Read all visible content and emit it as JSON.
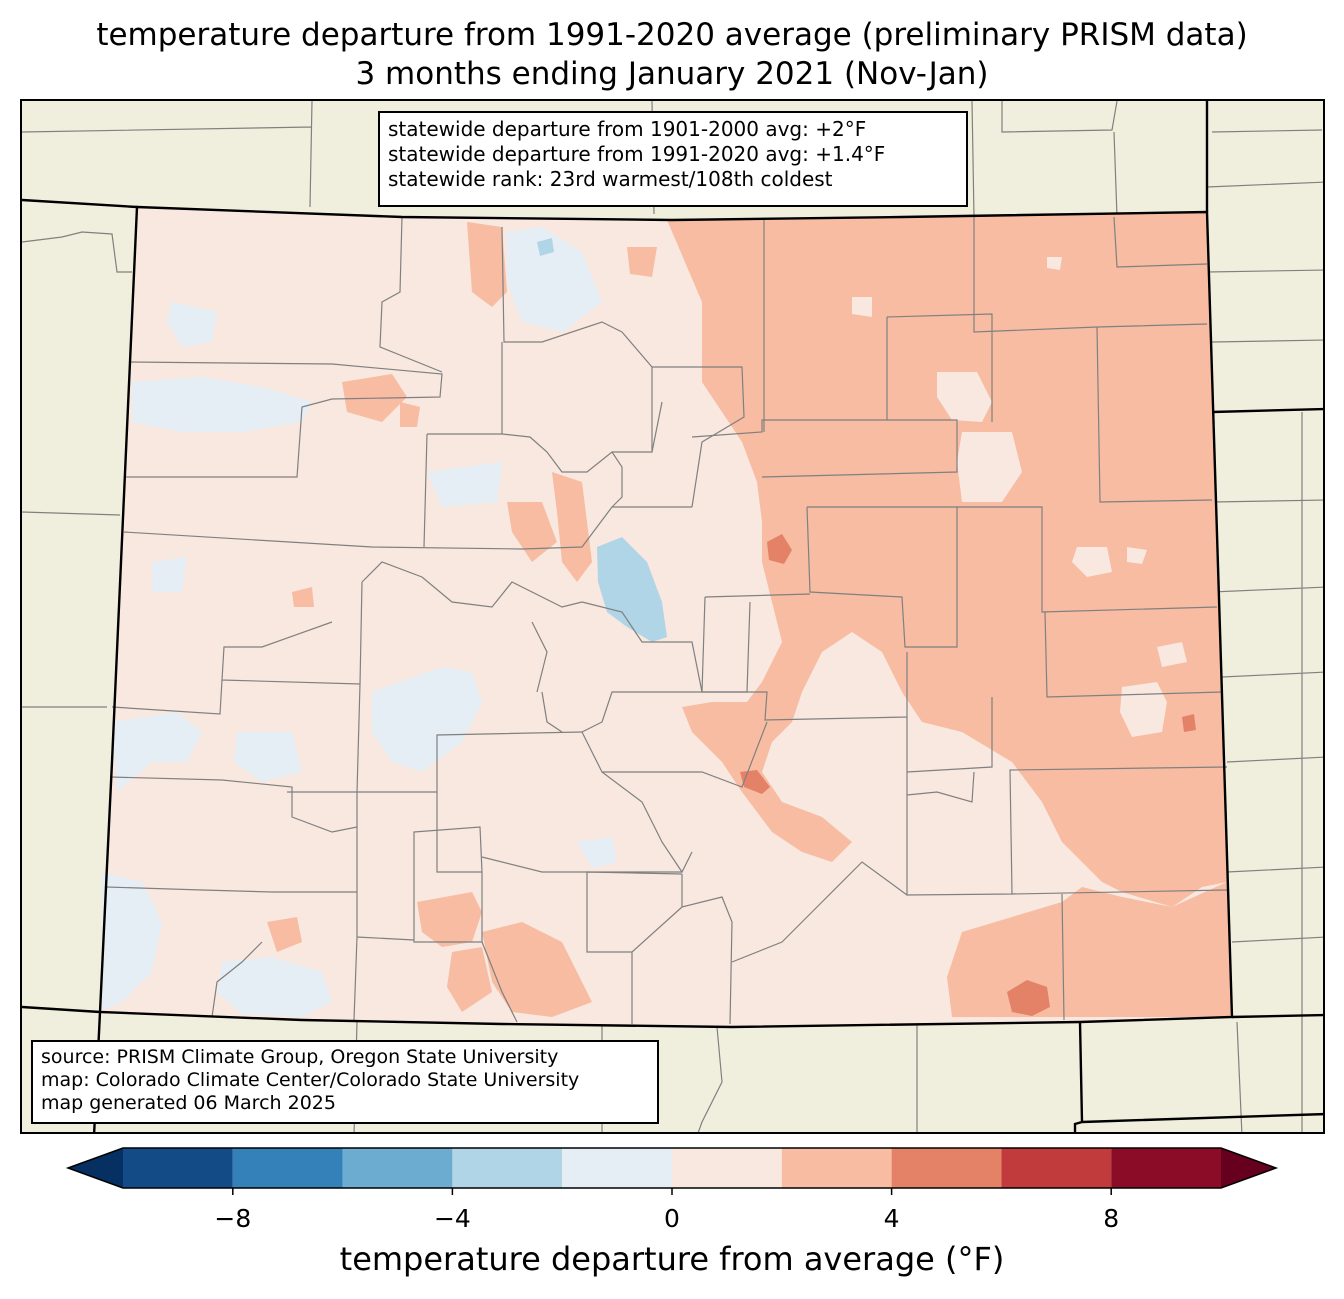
{
  "title": {
    "line1": "temperature departure from 1991-2020 average (preliminary PRISM data)",
    "line2": "3 months ending January 2021 (Nov-Jan)"
  },
  "stats_box": {
    "line1": "statewide departure from 1901-2000 avg: +2°F",
    "line2": "statewide departure from 1991-2020 avg: +1.4°F",
    "line3": "statewide rank: 23rd warmest/108th coldest"
  },
  "source_box": {
    "line1": "source: PRISM Climate Group, Oregon State University",
    "line2": "map: Colorado Climate Center/Colorado State University",
    "line3": "map generated 06 March 2025"
  },
  "colorbar": {
    "label": "temperature departure from average (°F)",
    "ticks": [
      {
        "label": "−8",
        "value": -8
      },
      {
        "label": "−4",
        "value": -4
      },
      {
        "label": "0",
        "value": 0
      },
      {
        "label": "4",
        "value": 4
      },
      {
        "label": "8",
        "value": 8
      }
    ],
    "range": [
      -10,
      10
    ],
    "bins": [
      {
        "from": -10,
        "to": -8,
        "color": "#134b87"
      },
      {
        "from": -8,
        "to": -6,
        "color": "#3480b9"
      },
      {
        "from": -6,
        "to": -4,
        "color": "#6bacd0"
      },
      {
        "from": -4,
        "to": -2,
        "color": "#b0d5e7"
      },
      {
        "from": -2,
        "to": 0,
        "color": "#e5eef4"
      },
      {
        "from": 0,
        "to": 2,
        "color": "#f8e8e0"
      },
      {
        "from": 2,
        "to": 4,
        "color": "#f7bca1"
      },
      {
        "from": 4,
        "to": 6,
        "color": "#e48268"
      },
      {
        "from": 6,
        "to": 8,
        "color": "#c13b3c"
      },
      {
        "from": 8,
        "to": 10,
        "color": "#8a0c26"
      }
    ],
    "extend_low_color": "#053061",
    "extend_high_color": "#67001f"
  },
  "map_colors": {
    "background": "#f0eedc",
    "county_lines": "#808080",
    "state_lines": "#000000"
  }
}
